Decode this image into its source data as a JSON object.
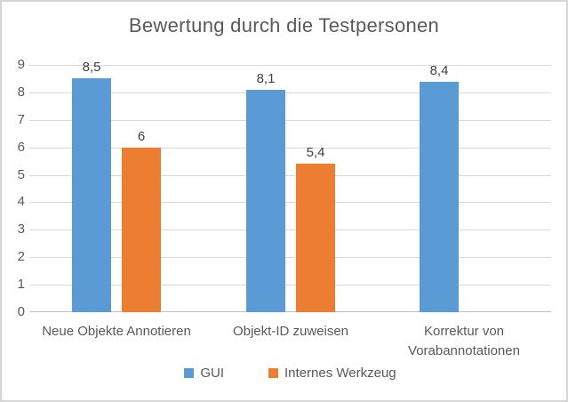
{
  "chart_data": {
    "type": "bar",
    "title": "Bewertung durch die Testpersonen",
    "categories": [
      "Neue Objekte Annotieren",
      "Objekt-ID zuweisen",
      "Korrektur von Vorabannotationen"
    ],
    "series": [
      {
        "name": "GUI",
        "color": "#5B9BD5",
        "values": [
          8.5,
          8.1,
          8.4
        ],
        "labels": [
          "8,5",
          "8,1",
          "8,4"
        ]
      },
      {
        "name": "Internes Werkzeug",
        "color": "#ED7D31",
        "values": [
          6,
          5.4,
          null
        ],
        "labels": [
          "6",
          "5,4",
          ""
        ]
      }
    ],
    "xlabel": "",
    "ylabel": "",
    "ylim": [
      0,
      9
    ],
    "yticks": [
      0,
      1,
      2,
      3,
      4,
      5,
      6,
      7,
      8,
      9
    ],
    "grid": true,
    "legend_position": "bottom",
    "decimal_separator": ",",
    "colors": {
      "title_text": "#595959",
      "axis_text": "#595959",
      "data_label_text": "#404040",
      "gridline": "#D9D9D9",
      "axis_line": "#BFBFBF",
      "frame_border": "#D6D6D6",
      "background": "#ffffff"
    }
  }
}
